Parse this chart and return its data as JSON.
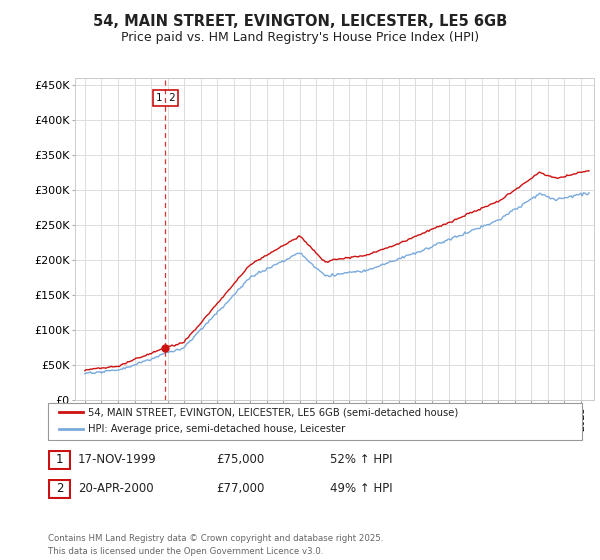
{
  "title": "54, MAIN STREET, EVINGTON, LEICESTER, LE5 6GB",
  "subtitle": "Price paid vs. HM Land Registry's House Price Index (HPI)",
  "ylim": [
    0,
    460000
  ],
  "yticks": [
    0,
    50000,
    100000,
    150000,
    200000,
    250000,
    300000,
    350000,
    400000,
    450000
  ],
  "ytick_labels": [
    "£0",
    "£50K",
    "£100K",
    "£150K",
    "£200K",
    "£250K",
    "£300K",
    "£350K",
    "£400K",
    "£450K"
  ],
  "hpi_color": "#7aaadd",
  "price_color": "#cc1111",
  "legend_label_price": "54, MAIN STREET, EVINGTON, LEICESTER, LE5 6GB (semi-detached house)",
  "legend_label_hpi": "HPI: Average price, semi-detached house, Leicester",
  "sale1_label": "1",
  "sale1_date": "17-NOV-1999",
  "sale1_price": "£75,000",
  "sale1_hpi": "52% ↑ HPI",
  "sale2_label": "2",
  "sale2_date": "20-APR-2000",
  "sale2_price": "£77,000",
  "sale2_hpi": "49% ↑ HPI",
  "footer": "Contains HM Land Registry data © Crown copyright and database right 2025.\nThis data is licensed under the Open Government Licence v3.0.",
  "background_color": "#ffffff",
  "grid_color": "#dddddd"
}
